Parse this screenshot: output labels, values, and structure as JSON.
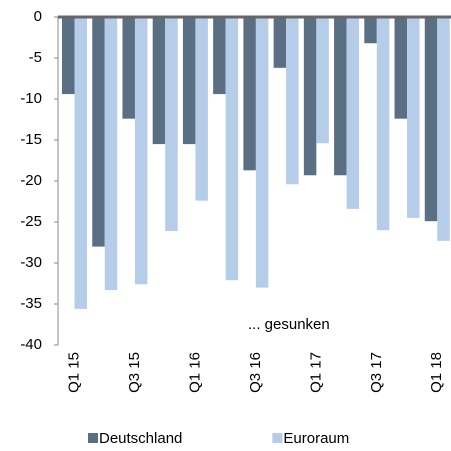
{
  "chart_data": {
    "type": "bar",
    "categories": [
      "Q1 15",
      null,
      "Q3 15",
      null,
      "Q1 16",
      null,
      "Q3 16",
      null,
      "Q1 17",
      null,
      "Q3 17",
      null,
      "Q1 18"
    ],
    "series": [
      {
        "name": "Deutschland",
        "color": "#5b6f84",
        "values": [
          -9.4,
          -28,
          -12.4,
          -15.5,
          -15.5,
          -9.4,
          -18.7,
          -6.2,
          -19.3,
          -19.3,
          -3.2,
          -12.4,
          -24.9
        ]
      },
      {
        "name": "Euroraum",
        "color": "#b6cde9",
        "values": [
          -35.6,
          -33.3,
          -32.6,
          -26.1,
          -22.4,
          -32.1,
          -33,
          -20.4,
          -15.4,
          -23.4,
          -26,
          -24.5,
          -27.3
        ]
      }
    ],
    "annotation": "... gesunken",
    "ylim": [
      -40,
      0
    ],
    "yticks": [
      0,
      -5,
      -10,
      -15,
      -20,
      -25,
      -30,
      -35,
      -40
    ],
    "legend": "bottom"
  }
}
